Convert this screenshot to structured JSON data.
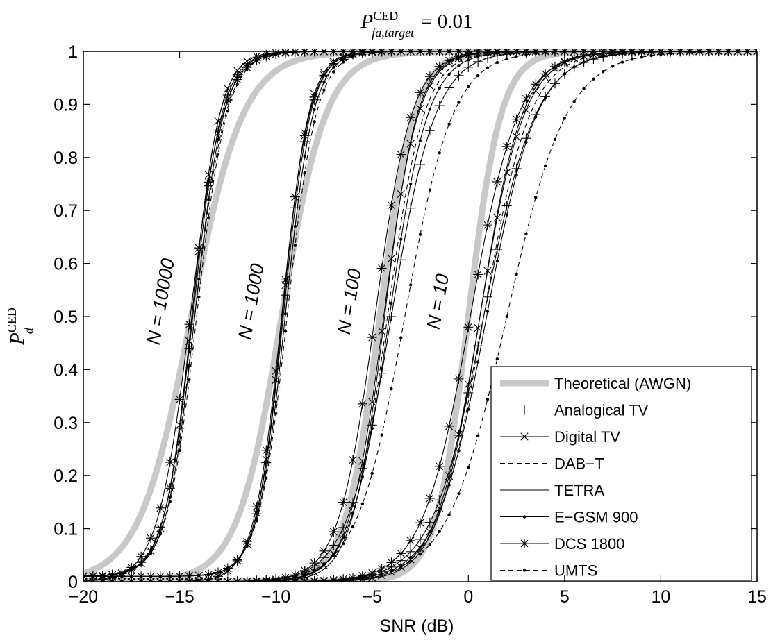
{
  "chart_data": {
    "type": "line",
    "title": {
      "main": "P",
      "sup": "CED",
      "sub": "fa,target",
      "rhs": "= 0.01"
    },
    "xlabel": "SNR (dB)",
    "ylabel": {
      "main": "P",
      "sup": "CED",
      "sub": "d"
    },
    "xlim": [
      -20,
      15
    ],
    "ylim": [
      0,
      1
    ],
    "xticks": [
      -20,
      -15,
      -10,
      -5,
      0,
      5,
      10,
      15
    ],
    "xtick_labels": [
      "−20",
      "−15",
      "−10",
      "−5",
      "0",
      "5",
      "10",
      "15"
    ],
    "yticks": [
      0,
      0.1,
      0.2,
      0.3,
      0.4,
      0.5,
      0.6,
      0.7,
      0.8,
      0.9,
      1
    ],
    "ytick_labels": [
      "0",
      "0.1",
      "0.2",
      "0.3",
      "0.4",
      "0.5",
      "0.6",
      "0.7",
      "0.8",
      "0.9",
      "1"
    ],
    "grid": false,
    "legend_position": "bottom-right",
    "series": [
      {
        "name": "Theoretical (AWGN)",
        "style": "thick-gray",
        "color": "#c8c8c8",
        "marker": "none",
        "dashed": false
      },
      {
        "name": "Analogical TV",
        "style": "solid",
        "color": "#000000",
        "marker": "plus",
        "dashed": false
      },
      {
        "name": "Digital TV",
        "style": "solid",
        "color": "#000000",
        "marker": "x",
        "dashed": false
      },
      {
        "name": "DAB−T",
        "style": "dashed",
        "color": "#000000",
        "marker": "none",
        "dashed": true
      },
      {
        "name": "TETRA",
        "style": "solid",
        "color": "#000000",
        "marker": "none",
        "dashed": false
      },
      {
        "name": "E−GSM 900",
        "style": "solid",
        "color": "#000000",
        "marker": "dot",
        "dashed": false
      },
      {
        "name": "DCS 1800",
        "style": "solid",
        "color": "#000000",
        "marker": "star",
        "dashed": false
      },
      {
        "name": "UMTS",
        "style": "dashed",
        "color": "#000000",
        "marker": "dot",
        "dashed": true
      }
    ],
    "groups": [
      {
        "label": "N = 10000",
        "theory": {
          "mid": -14.4,
          "w": 1.35
        },
        "curves": [
          {
            "mid": -14.3,
            "w": 0.75,
            "floor": 0.01
          },
          {
            "mid": -14.35,
            "w": 0.72,
            "floor": 0.01
          },
          {
            "mid": -14.2,
            "w": 0.8,
            "floor": 0.01
          },
          {
            "mid": -14.35,
            "w": 0.72,
            "floor": 0.01
          },
          {
            "mid": -14.2,
            "w": 0.75,
            "floor": 0.01
          },
          {
            "mid": -14.45,
            "w": 0.85,
            "floor": 0.0
          },
          {
            "mid": -14.1,
            "w": 0.78,
            "floor": 0.01
          }
        ]
      },
      {
        "label": "N = 1000",
        "theory": {
          "mid": -9.7,
          "w": 1.15
        },
        "curves": [
          {
            "mid": -9.6,
            "w": 0.7,
            "floor": 0.01
          },
          {
            "mid": -9.65,
            "w": 0.68,
            "floor": 0.01
          },
          {
            "mid": -9.5,
            "w": 0.72,
            "floor": 0.01
          },
          {
            "mid": -9.65,
            "w": 0.68,
            "floor": 0.01
          },
          {
            "mid": -9.5,
            "w": 0.72,
            "floor": 0.01
          },
          {
            "mid": -9.7,
            "w": 0.72,
            "floor": 0.0
          },
          {
            "mid": -9.4,
            "w": 0.75,
            "floor": 0.01
          }
        ]
      },
      {
        "label": "N = 100",
        "theory": {
          "mid": -4.6,
          "w": 0.9
        },
        "curves": [
          {
            "mid": -4.0,
            "w": 1.15,
            "floor": 0.0
          },
          {
            "mid": -4.4,
            "w": 0.9,
            "floor": 0.0
          },
          {
            "mid": -4.2,
            "w": 0.95,
            "floor": 0.0
          },
          {
            "mid": -4.35,
            "w": 0.85,
            "floor": 0.0
          },
          {
            "mid": -4.1,
            "w": 1.0,
            "floor": 0.0
          },
          {
            "mid": -4.85,
            "w": 0.95,
            "floor": 0.0
          },
          {
            "mid": -3.3,
            "w": 1.25,
            "floor": 0.0
          }
        ]
      },
      {
        "label": "N = 10",
        "theory": {
          "mid": 0.0,
          "w": 0.85
        },
        "curves": [
          {
            "mid": 0.8,
            "w": 1.35,
            "floor": 0.0
          },
          {
            "mid": 0.6,
            "w": 1.15,
            "floor": 0.0
          },
          {
            "mid": 0.8,
            "w": 1.2,
            "floor": 0.0
          },
          {
            "mid": 0.6,
            "w": 1.1,
            "floor": 0.0
          },
          {
            "mid": 0.95,
            "w": 1.3,
            "floor": 0.0
          },
          {
            "mid": 0.1,
            "w": 1.25,
            "floor": 0.0
          },
          {
            "mid": 2.0,
            "w": 1.55,
            "floor": 0.0
          }
        ]
      }
    ]
  }
}
